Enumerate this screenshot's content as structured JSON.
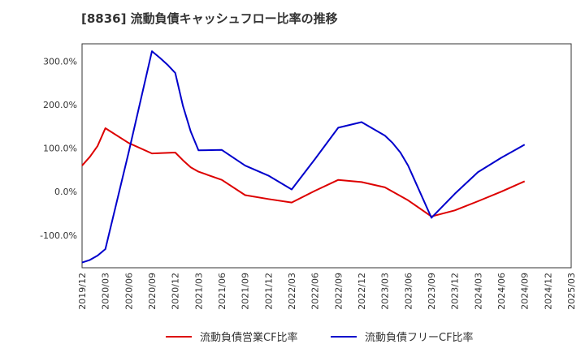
{
  "chart_data": {
    "type": "line",
    "title": "[8836]  流動負債キャッシュフロー比率の推移",
    "xlabel": "",
    "ylabel": "",
    "x_ticks": [
      "2019/12",
      "2020/03",
      "2020/06",
      "2020/09",
      "2020/12",
      "2021/03",
      "2021/06",
      "2021/09",
      "2021/12",
      "2022/03",
      "2022/06",
      "2022/09",
      "2022/12",
      "2023/03",
      "2023/06",
      "2023/09",
      "2023/12",
      "2024/03",
      "2024/06",
      "2024/09",
      "2024/12",
      "2025/03"
    ],
    "y_ticks": [
      "300.0%",
      "200.0%",
      "100.0%",
      "0.0%",
      "-100.0%"
    ],
    "y_tick_values": [
      300,
      200,
      100,
      0,
      -100
    ],
    "ylim": [
      -175,
      340
    ],
    "grid": true,
    "legend_position": "bottom",
    "series": [
      {
        "name": "流動負債営業CF比率",
        "color": "#dd0000",
        "points": [
          {
            "x": "2019/12",
            "y": 60
          },
          {
            "x": "2020/01",
            "y": 80
          },
          {
            "x": "2020/02",
            "y": 105
          },
          {
            "x": "2020/03",
            "y": 146
          },
          {
            "x": "2020/06",
            "y": 112
          },
          {
            "x": "2020/09",
            "y": 88
          },
          {
            "x": "2020/12",
            "y": 90
          },
          {
            "x": "2021/01",
            "y": 72
          },
          {
            "x": "2021/02",
            "y": 56
          },
          {
            "x": "2021/03",
            "y": 46
          },
          {
            "x": "2021/06",
            "y": 27
          },
          {
            "x": "2021/09",
            "y": -8
          },
          {
            "x": "2021/12",
            "y": -17
          },
          {
            "x": "2022/03",
            "y": -25
          },
          {
            "x": "2022/06",
            "y": 2
          },
          {
            "x": "2022/09",
            "y": 27
          },
          {
            "x": "2022/12",
            "y": 22
          },
          {
            "x": "2023/03",
            "y": 10
          },
          {
            "x": "2023/06",
            "y": -20
          },
          {
            "x": "2023/09",
            "y": -57
          },
          {
            "x": "2023/12",
            "y": -43
          },
          {
            "x": "2024/03",
            "y": -22
          },
          {
            "x": "2024/06",
            "y": 0
          },
          {
            "x": "2024/09",
            "y": 24
          }
        ]
      },
      {
        "name": "流動負債フリーCF比率",
        "color": "#0000cc",
        "points": [
          {
            "x": "2019/12",
            "y": -163
          },
          {
            "x": "2020/01",
            "y": -157
          },
          {
            "x": "2020/02",
            "y": -147
          },
          {
            "x": "2020/03",
            "y": -132
          },
          {
            "x": "2020/06",
            "y": 90
          },
          {
            "x": "2020/09",
            "y": 323
          },
          {
            "x": "2020/10",
            "y": 308
          },
          {
            "x": "2020/11",
            "y": 292
          },
          {
            "x": "2020/12",
            "y": 273
          },
          {
            "x": "2021/01",
            "y": 197
          },
          {
            "x": "2021/02",
            "y": 138
          },
          {
            "x": "2021/03",
            "y": 95
          },
          {
            "x": "2021/06",
            "y": 96
          },
          {
            "x": "2021/09",
            "y": 60
          },
          {
            "x": "2021/12",
            "y": 37
          },
          {
            "x": "2022/03",
            "y": 5
          },
          {
            "x": "2022/06",
            "y": 75
          },
          {
            "x": "2022/09",
            "y": 147
          },
          {
            "x": "2022/12",
            "y": 160
          },
          {
            "x": "2023/03",
            "y": 129
          },
          {
            "x": "2023/04",
            "y": 112
          },
          {
            "x": "2023/05",
            "y": 90
          },
          {
            "x": "2023/06",
            "y": 60
          },
          {
            "x": "2023/09",
            "y": -60
          },
          {
            "x": "2023/12",
            "y": -5
          },
          {
            "x": "2024/03",
            "y": 45
          },
          {
            "x": "2024/06",
            "y": 78
          },
          {
            "x": "2024/09",
            "y": 108
          }
        ]
      }
    ]
  }
}
